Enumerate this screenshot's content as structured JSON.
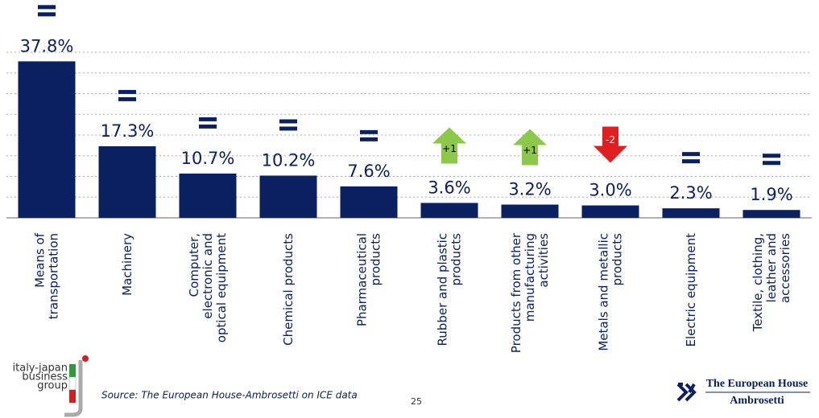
{
  "chart_data": {
    "type": "bar",
    "categories": [
      "Means of\ntransportation",
      "Machinery",
      "Computer,\nelectronic and\noptical equipment",
      "Chemical products",
      "Pharmaceutical\nproducts",
      "Rubber and plastic\nproducts",
      "Products from other\nmanufacturing\nactivities",
      "Metals and metallic\nproducts",
      "Electric equipment",
      "Textile, clothing,\nleather and\naccessories"
    ],
    "values": [
      37.8,
      17.3,
      10.7,
      10.2,
      7.6,
      3.6,
      3.2,
      3.0,
      2.3,
      1.9
    ],
    "value_labels": [
      "37.8%",
      "17.3%",
      "10.7%",
      "10.2%",
      "7.6%",
      "3.6%",
      "3.2%",
      "3.0%",
      "2.3%",
      "1.9%"
    ],
    "rank_changes": [
      "=",
      "=",
      "=",
      "=",
      "=",
      "+1",
      "+1",
      "-2",
      "=",
      "="
    ],
    "color": "#0a2060",
    "ylim": [
      0,
      40
    ],
    "yticks": [
      0,
      5,
      10,
      15,
      20,
      25,
      30,
      35,
      40
    ],
    "grid": true
  },
  "footer": {
    "logo_left": [
      "italy-japan",
      "business",
      "group"
    ],
    "source": "Source: The European House-Ambrosetti on ICE data",
    "page": "25",
    "logo_right": [
      "The European House",
      "Ambrosetti"
    ]
  }
}
